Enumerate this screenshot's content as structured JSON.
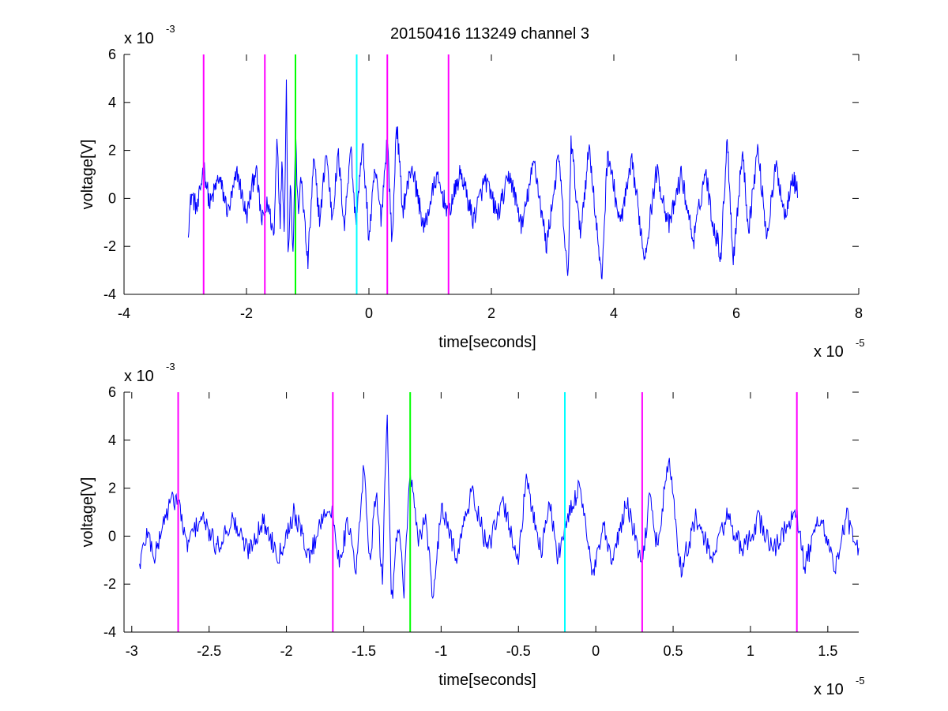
{
  "chart_data": [
    {
      "type": "line",
      "title": "20150416 113249 channel 3",
      "xlabel": "time[seconds]",
      "ylabel": "voltage[V]",
      "x_multiplier": {
        "base": "x 10",
        "exponent": "-5"
      },
      "y_multiplier": {
        "base": "x 10",
        "exponent": "-3"
      },
      "xlim": [
        -4,
        8
      ],
      "ylim": [
        -4,
        6
      ],
      "x_ticks": [
        -4,
        -2,
        0,
        2,
        4,
        6,
        8
      ],
      "x_tick_labels": [
        "-4",
        "-2",
        "0",
        "2",
        "4",
        "6",
        "8"
      ],
      "y_ticks": [
        -4,
        -2,
        0,
        2,
        4,
        6
      ],
      "y_tick_labels": [
        "-4",
        "-2",
        "0",
        "2",
        "4",
        "6"
      ],
      "grid": false,
      "signal": {
        "color": "#0000ff",
        "x_start": -2.95,
        "x_end": 7.0,
        "keypoints": [
          [
            -2.95,
            -1.2
          ],
          [
            -2.9,
            0.2
          ],
          [
            -2.8,
            -0.5
          ],
          [
            -2.7,
            1.4
          ],
          [
            -2.6,
            -0.3
          ],
          [
            -2.45,
            0.9
          ],
          [
            -2.3,
            -0.6
          ],
          [
            -2.15,
            1.1
          ],
          [
            -2.0,
            -0.8
          ],
          [
            -1.85,
            1.3
          ],
          [
            -1.75,
            -1.0
          ],
          [
            -1.65,
            -0.2
          ],
          [
            -1.55,
            -1.6
          ],
          [
            -1.5,
            2.9
          ],
          [
            -1.45,
            -1.2
          ],
          [
            -1.42,
            1.8
          ],
          [
            -1.38,
            -1.5
          ],
          [
            -1.35,
            5.4
          ],
          [
            -1.32,
            -2.9
          ],
          [
            -1.28,
            1.0
          ],
          [
            -1.24,
            -2.5
          ],
          [
            -1.2,
            2.8
          ],
          [
            -1.16,
            -0.5
          ],
          [
            -1.1,
            0.8
          ],
          [
            -1.0,
            -2.8
          ],
          [
            -0.9,
            1.6
          ],
          [
            -0.8,
            -1.0
          ],
          [
            -0.7,
            2.0
          ],
          [
            -0.6,
            -0.8
          ],
          [
            -0.5,
            1.8
          ],
          [
            -0.4,
            -1.2
          ],
          [
            -0.3,
            2.3
          ],
          [
            -0.22,
            -1.0
          ],
          [
            -0.1,
            2.2
          ],
          [
            0.0,
            -1.7
          ],
          [
            0.1,
            1.2
          ],
          [
            0.2,
            -0.8
          ],
          [
            0.3,
            2.6
          ],
          [
            0.38,
            -2.0
          ],
          [
            0.45,
            3.3
          ],
          [
            0.55,
            -0.5
          ],
          [
            0.7,
            1.4
          ],
          [
            0.9,
            -1.3
          ],
          [
            1.1,
            0.9
          ],
          [
            1.3,
            -0.6
          ],
          [
            1.5,
            1.1
          ],
          [
            1.7,
            -0.9
          ],
          [
            1.9,
            0.8
          ],
          [
            2.1,
            -0.7
          ],
          [
            2.3,
            1.0
          ],
          [
            2.5,
            -1.2
          ],
          [
            2.7,
            1.6
          ],
          [
            2.9,
            -2.0
          ],
          [
            3.1,
            1.8
          ],
          [
            3.25,
            -3.6
          ],
          [
            3.3,
            2.4
          ],
          [
            3.45,
            -1.5
          ],
          [
            3.6,
            2.2
          ],
          [
            3.8,
            -3.5
          ],
          [
            3.9,
            2.0
          ],
          [
            4.1,
            -1.1
          ],
          [
            4.3,
            1.5
          ],
          [
            4.5,
            -2.5
          ],
          [
            4.7,
            1.2
          ],
          [
            4.9,
            -1.2
          ],
          [
            5.1,
            1.0
          ],
          [
            5.3,
            -1.8
          ],
          [
            5.5,
            1.2
          ],
          [
            5.6,
            -0.8
          ],
          [
            5.75,
            -2.4
          ],
          [
            5.85,
            2.6
          ],
          [
            5.95,
            -2.6
          ],
          [
            6.1,
            2.0
          ],
          [
            6.2,
            -1.3
          ],
          [
            6.35,
            2.1
          ],
          [
            6.5,
            -1.6
          ],
          [
            6.65,
            1.4
          ],
          [
            6.8,
            -0.8
          ],
          [
            6.9,
            0.9
          ],
          [
            7.0,
            0.4
          ]
        ]
      },
      "markers": [
        {
          "x": -2.7,
          "color": "#ff00ff"
        },
        {
          "x": -1.7,
          "color": "#ff00ff"
        },
        {
          "x": -1.2,
          "color": "#00ff00"
        },
        {
          "x": -0.2,
          "color": "#00ffff"
        },
        {
          "x": 0.3,
          "color": "#ff00ff"
        },
        {
          "x": 1.3,
          "color": "#ff00ff"
        }
      ]
    },
    {
      "type": "line",
      "title": "",
      "xlabel": "time[seconds]",
      "ylabel": "voltage[V]",
      "x_multiplier": {
        "base": "x 10",
        "exponent": "-5"
      },
      "y_multiplier": {
        "base": "x 10",
        "exponent": "-3"
      },
      "xlim": [
        -3.05,
        1.7
      ],
      "ylim": [
        -4,
        6
      ],
      "x_ticks": [
        -3,
        -2.5,
        -2,
        -1.5,
        -1,
        -0.5,
        0,
        0.5,
        1,
        1.5
      ],
      "x_tick_labels": [
        "-3",
        "-2.5",
        "-2",
        "-1.5",
        "-1",
        "-0.5",
        "0",
        "0.5",
        "1",
        "1.5"
      ],
      "y_ticks": [
        -4,
        -2,
        0,
        2,
        4,
        6
      ],
      "y_tick_labels": [
        "-4",
        "-2",
        "0",
        "2",
        "4",
        "6"
      ],
      "grid": false,
      "signal": {
        "color": "#0000ff",
        "x_start": -2.95,
        "x_end": 1.7,
        "keypoints": [
          [
            -2.95,
            -1.2
          ],
          [
            -2.9,
            0.2
          ],
          [
            -2.85,
            -0.9
          ],
          [
            -2.8,
            0.5
          ],
          [
            -2.75,
            1.4
          ],
          [
            -2.7,
            1.6
          ],
          [
            -2.65,
            -0.4
          ],
          [
            -2.55,
            0.8
          ],
          [
            -2.45,
            -0.5
          ],
          [
            -2.35,
            0.7
          ],
          [
            -2.25,
            -0.6
          ],
          [
            -2.15,
            0.6
          ],
          [
            -2.05,
            -0.8
          ],
          [
            -1.95,
            1.0
          ],
          [
            -1.85,
            -0.9
          ],
          [
            -1.75,
            1.2
          ],
          [
            -1.7,
            0.8
          ],
          [
            -1.66,
            -1.0
          ],
          [
            -1.6,
            0.6
          ],
          [
            -1.55,
            -1.6
          ],
          [
            -1.5,
            2.9
          ],
          [
            -1.46,
            -1.1
          ],
          [
            -1.42,
            1.9
          ],
          [
            -1.38,
            -2.0
          ],
          [
            -1.35,
            5.4
          ],
          [
            -1.32,
            -2.9
          ],
          [
            -1.28,
            0.8
          ],
          [
            -1.24,
            -2.2
          ],
          [
            -1.2,
            2.8
          ],
          [
            -1.15,
            -0.3
          ],
          [
            -1.1,
            0.9
          ],
          [
            -1.05,
            -2.8
          ],
          [
            -1.0,
            1.2
          ],
          [
            -0.9,
            -0.8
          ],
          [
            -0.8,
            1.9
          ],
          [
            -0.7,
            -0.6
          ],
          [
            -0.6,
            1.4
          ],
          [
            -0.5,
            -1.0
          ],
          [
            -0.45,
            2.3
          ],
          [
            -0.35,
            -0.7
          ],
          [
            -0.3,
            1.6
          ],
          [
            -0.25,
            -0.9
          ],
          [
            -0.2,
            0.3
          ],
          [
            -0.1,
            2.2
          ],
          [
            -0.02,
            -1.8
          ],
          [
            0.05,
            0.4
          ],
          [
            0.1,
            -1.2
          ],
          [
            0.2,
            1.4
          ],
          [
            0.3,
            -1.3
          ],
          [
            0.35,
            1.8
          ],
          [
            0.4,
            -0.6
          ],
          [
            0.47,
            3.3
          ],
          [
            0.55,
            -1.4
          ],
          [
            0.65,
            0.8
          ],
          [
            0.75,
            -1.0
          ],
          [
            0.85,
            0.9
          ],
          [
            0.95,
            -0.7
          ],
          [
            1.05,
            0.7
          ],
          [
            1.15,
            -0.6
          ],
          [
            1.25,
            0.6
          ],
          [
            1.3,
            0.8
          ],
          [
            1.35,
            -1.3
          ],
          [
            1.45,
            0.9
          ],
          [
            1.55,
            -1.4
          ],
          [
            1.62,
            0.9
          ],
          [
            1.7,
            -0.8
          ]
        ]
      },
      "markers": [
        {
          "x": -2.7,
          "color": "#ff00ff"
        },
        {
          "x": -1.7,
          "color": "#ff00ff"
        },
        {
          "x": -1.2,
          "color": "#00ff00"
        },
        {
          "x": -0.2,
          "color": "#00ffff"
        },
        {
          "x": 0.3,
          "color": "#ff00ff"
        },
        {
          "x": 1.3,
          "color": "#ff00ff"
        }
      ]
    }
  ]
}
